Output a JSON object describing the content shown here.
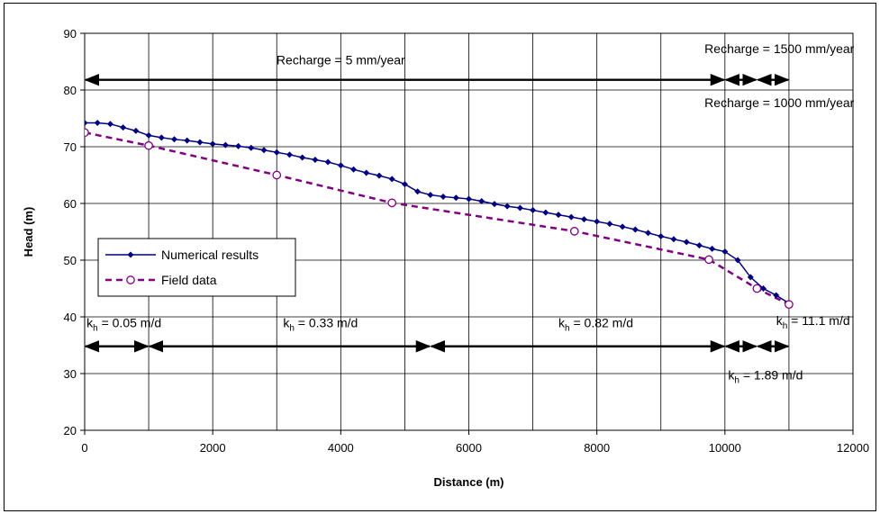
{
  "chart_data": {
    "type": "line",
    "xlabel": "Distance (m)",
    "ylabel": "Head (m)",
    "xlim": [
      0,
      12000
    ],
    "ylim": [
      20,
      90
    ],
    "xticks": [
      0,
      2000,
      4000,
      6000,
      8000,
      10000,
      12000
    ],
    "yticks": [
      20,
      30,
      40,
      50,
      60,
      70,
      80,
      90
    ],
    "x_minor_grid": [
      1000,
      3000,
      5000,
      7000,
      9000,
      11000
    ],
    "grid": true,
    "legend_position": "left",
    "series": [
      {
        "name": "Numerical results",
        "color": "#000080",
        "marker": "diamond",
        "x": [
          0,
          200,
          400,
          600,
          800,
          1000,
          1200,
          1400,
          1600,
          1800,
          2000,
          2200,
          2400,
          2600,
          2800,
          3000,
          3200,
          3400,
          3600,
          3800,
          4000,
          4200,
          4400,
          4600,
          4800,
          5000,
          5200,
          5400,
          5600,
          5800,
          6000,
          6200,
          6400,
          6600,
          6800,
          7000,
          7200,
          7400,
          7600,
          7800,
          8000,
          8200,
          8400,
          8600,
          8800,
          9000,
          9200,
          9400,
          9600,
          9800,
          10000,
          10200,
          10400,
          10600,
          10800,
          11000
        ],
        "y": [
          74.2,
          74.2,
          74.0,
          73.4,
          72.8,
          72.0,
          71.6,
          71.3,
          71.1,
          70.8,
          70.5,
          70.3,
          70.1,
          69.8,
          69.4,
          69.0,
          68.6,
          68.1,
          67.7,
          67.3,
          66.7,
          66.0,
          65.4,
          64.9,
          64.3,
          63.4,
          62.1,
          61.5,
          61.2,
          61.0,
          60.8,
          60.4,
          59.9,
          59.5,
          59.2,
          58.8,
          58.4,
          58.0,
          57.6,
          57.2,
          56.8,
          56.4,
          55.9,
          55.4,
          54.8,
          54.2,
          53.7,
          53.2,
          52.6,
          52.0,
          51.5,
          50.0,
          47.0,
          45.0,
          43.8,
          42.4
        ]
      },
      {
        "name": "Field data",
        "color": "#800080",
        "marker": "circle",
        "x": [
          0,
          1000,
          3000,
          4800,
          7650,
          9750,
          10500,
          11000
        ],
        "y": [
          72.5,
          70.2,
          65.0,
          60.1,
          55.1,
          50.1,
          45.0,
          42.2
        ]
      }
    ],
    "annotations": [
      {
        "text": "Recharge = 5 mm/year",
        "x": 4000,
        "y": 84.5
      },
      {
        "text": "Recharge = 1500 mm/year",
        "x": 10850,
        "y": 86.5
      },
      {
        "text": "Recharge = 1000 mm/year",
        "x": 10850,
        "y": 77.0
      }
    ],
    "kh_annotations": [
      {
        "prefix": "k",
        "sub": "h",
        "value": " = 0.05 m/d",
        "x": 30,
        "y": 38.2
      },
      {
        "prefix": "k",
        "sub": "h",
        "value": " = 0.33 m/d",
        "x": 3100,
        "y": 38.2
      },
      {
        "prefix": "k",
        "sub": "h",
        "value": " = 0.82 m/d",
        "x": 7400,
        "y": 38.2
      },
      {
        "prefix": "k",
        "sub": "h",
        "value": " = 11.1 m/d",
        "x": 10800,
        "y": 38.6
      },
      {
        "prefix": "k",
        "sub": "h",
        "value": " = 1.89 m/d",
        "x": 10050,
        "y": 29.0
      }
    ],
    "recharge_arrows": [
      {
        "x0": 0,
        "x1": 10000,
        "y": 81.8
      },
      {
        "x0": 10000,
        "x1": 10500,
        "y": 81.8
      },
      {
        "x0": 10500,
        "x1": 11000,
        "y": 81.8
      }
    ],
    "kh_arrows": [
      {
        "x0": 0,
        "x1": 1000,
        "y": 34.8
      },
      {
        "x0": 1000,
        "x1": 5400,
        "y": 34.8
      },
      {
        "x0": 5400,
        "x1": 10000,
        "y": 34.8
      },
      {
        "x0": 10000,
        "x1": 10500,
        "y": 34.8
      },
      {
        "x0": 10500,
        "x1": 11000,
        "y": 34.8
      }
    ]
  }
}
